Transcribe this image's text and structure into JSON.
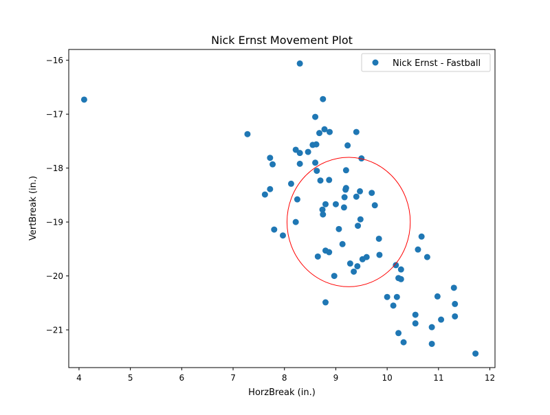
{
  "chart_data": {
    "type": "scatter",
    "title": "Nick Ernst Movement Plot",
    "xlabel": "HorzBreak (in.)",
    "ylabel": "VertBreak (in.)",
    "xlim": [
      3.8,
      12.1
    ],
    "ylim": [
      -21.7,
      -15.8
    ],
    "x_ticks": [
      4,
      5,
      6,
      7,
      8,
      9,
      10,
      11,
      12
    ],
    "x_tick_labels": [
      "4",
      "5",
      "6",
      "7",
      "8",
      "9",
      "10",
      "11",
      "12"
    ],
    "y_ticks": [
      -21,
      -20,
      -19,
      -18,
      -17,
      -16
    ],
    "y_tick_labels": [
      "−21",
      "−20",
      "−19",
      "−18",
      "−17",
      "−16"
    ],
    "grid": false,
    "legend_position": "top-right",
    "series": [
      {
        "name": "Nick Ernst - Fastball",
        "color": "#1f77b4",
        "points": [
          [
            4.1,
            -16.73
          ],
          [
            8.3,
            -16.06
          ],
          [
            8.75,
            -16.72
          ],
          [
            7.28,
            -17.37
          ],
          [
            8.6,
            -17.05
          ],
          [
            8.78,
            -17.28
          ],
          [
            8.68,
            -17.35
          ],
          [
            8.88,
            -17.33
          ],
          [
            9.4,
            -17.33
          ],
          [
            8.55,
            -17.57
          ],
          [
            8.62,
            -17.56
          ],
          [
            9.23,
            -17.58
          ],
          [
            8.22,
            -17.66
          ],
          [
            8.3,
            -17.72
          ],
          [
            8.46,
            -17.7
          ],
          [
            7.72,
            -17.81
          ],
          [
            9.5,
            -17.82
          ],
          [
            7.77,
            -17.93
          ],
          [
            8.3,
            -17.92
          ],
          [
            8.6,
            -17.9
          ],
          [
            9.2,
            -18.04
          ],
          [
            8.63,
            -18.05
          ],
          [
            8.7,
            -18.23
          ],
          [
            8.87,
            -18.22
          ],
          [
            8.13,
            -18.29
          ],
          [
            9.2,
            -18.37
          ],
          [
            9.19,
            -18.4
          ],
          [
            7.72,
            -18.39
          ],
          [
            9.47,
            -18.43
          ],
          [
            9.7,
            -18.46
          ],
          [
            7.62,
            -18.49
          ],
          [
            9.17,
            -18.54
          ],
          [
            9.4,
            -18.53
          ],
          [
            8.25,
            -18.58
          ],
          [
            8.8,
            -18.67
          ],
          [
            9.0,
            -18.67
          ],
          [
            9.76,
            -18.69
          ],
          [
            8.74,
            -18.77
          ],
          [
            9.16,
            -18.73
          ],
          [
            8.75,
            -18.86
          ],
          [
            9.48,
            -18.95
          ],
          [
            8.22,
            -19.0
          ],
          [
            9.43,
            -19.07
          ],
          [
            7.8,
            -19.14
          ],
          [
            9.06,
            -19.13
          ],
          [
            7.97,
            -19.25
          ],
          [
            10.67,
            -19.27
          ],
          [
            9.84,
            -19.31
          ],
          [
            9.13,
            -19.41
          ],
          [
            10.6,
            -19.51
          ],
          [
            8.8,
            -19.53
          ],
          [
            8.87,
            -19.56
          ],
          [
            9.85,
            -19.61
          ],
          [
            8.65,
            -19.64
          ],
          [
            9.6,
            -19.65
          ],
          [
            10.78,
            -19.65
          ],
          [
            9.52,
            -19.69
          ],
          [
            9.28,
            -19.77
          ],
          [
            10.17,
            -19.8
          ],
          [
            9.42,
            -19.82
          ],
          [
            10.27,
            -19.88
          ],
          [
            9.35,
            -19.92
          ],
          [
            8.97,
            -20.0
          ],
          [
            10.22,
            -20.04
          ],
          [
            10.27,
            -20.06
          ],
          [
            11.3,
            -20.22
          ],
          [
            10.0,
            -20.39
          ],
          [
            10.19,
            -20.39
          ],
          [
            10.98,
            -20.38
          ],
          [
            8.8,
            -20.49
          ],
          [
            10.12,
            -20.55
          ],
          [
            11.32,
            -20.52
          ],
          [
            10.55,
            -20.72
          ],
          [
            11.32,
            -20.75
          ],
          [
            11.05,
            -20.81
          ],
          [
            10.55,
            -20.88
          ],
          [
            10.87,
            -20.95
          ],
          [
            10.22,
            -21.06
          ],
          [
            10.32,
            -21.23
          ],
          [
            10.87,
            -21.26
          ],
          [
            11.72,
            -21.44
          ]
        ]
      }
    ],
    "annotations": [
      {
        "type": "circle",
        "center": [
          9.25,
          -19.0
        ],
        "radius": 1.2,
        "color": "#ff0000"
      }
    ]
  }
}
